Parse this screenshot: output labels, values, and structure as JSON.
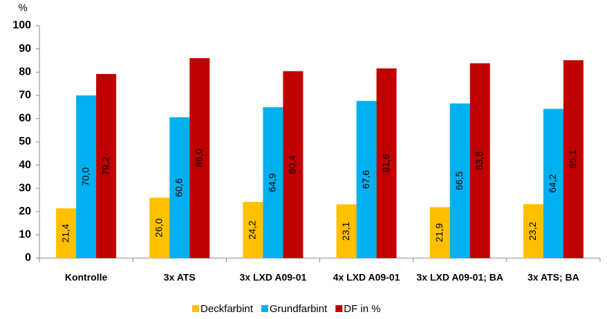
{
  "chart_data": {
    "type": "bar",
    "y_label": "%",
    "categories": [
      "Kontrolle",
      "3x ATS",
      "3x LXD A09-01",
      "4x LXD A09-01",
      "3x LXD A09-01; BA",
      "3x ATS; BA"
    ],
    "series": [
      {
        "name": "Deckfarbint",
        "color": "#FFC000",
        "values": [
          21.4,
          26.0,
          24.2,
          23.1,
          21.9,
          23.2
        ],
        "value_labels": [
          "21,4",
          "26,0",
          "24,2",
          "23,1",
          "21,9",
          "23,2"
        ]
      },
      {
        "name": "Grundfarbint",
        "color": "#00B0F0",
        "values": [
          70.0,
          60.6,
          64.9,
          67.6,
          66.5,
          64.2
        ],
        "value_labels": [
          "70,0",
          "60,6",
          "64,9",
          "67,6",
          "66,5",
          "64,2"
        ]
      },
      {
        "name": "DF in %",
        "color": "#C00000",
        "values": [
          79.2,
          86.0,
          80.4,
          81.6,
          83.8,
          85.1
        ],
        "value_labels": [
          "79,2",
          "86,0",
          "80,4",
          "81,6",
          "83,8",
          "85,1"
        ]
      }
    ],
    "ylim": [
      0,
      100
    ],
    "yticks": [
      0,
      10,
      20,
      30,
      40,
      50,
      60,
      70,
      80,
      90,
      100
    ],
    "grid": false
  }
}
